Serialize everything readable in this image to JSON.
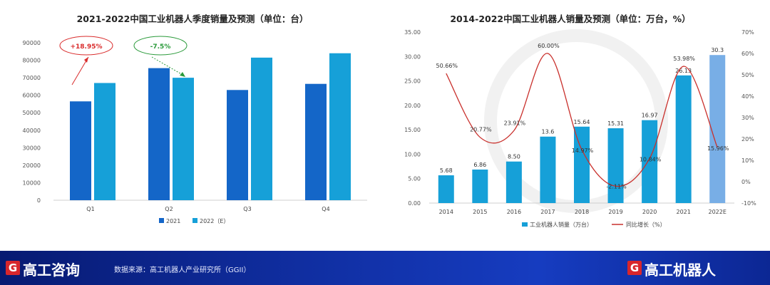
{
  "chart_data": [
    {
      "type": "bar",
      "title": "2021-2022中国工业机器人季度销量及预测（单位：台）",
      "categories": [
        "Q1",
        "Q2",
        "Q3",
        "Q4"
      ],
      "series": [
        {
          "name": "2021",
          "values": [
            56500,
            75500,
            63000,
            66500
          ],
          "color": "#1466c8"
        },
        {
          "name": "2022（E）",
          "values": [
            67000,
            70000,
            81500,
            84000
          ],
          "color": "#16a0d8"
        }
      ],
      "ylim": [
        0,
        90000
      ],
      "yticks": [
        0,
        10000,
        20000,
        30000,
        40000,
        50000,
        60000,
        70000,
        80000,
        90000
      ],
      "grid": false,
      "legend": "bottom",
      "annotations": [
        {
          "text": "+18.95%",
          "color": "#d92b2b"
        },
        {
          "text": "-7.5%",
          "color": "#2a9a3a"
        }
      ]
    },
    {
      "type": "bar",
      "title": "2014-2022中国工业机器人销量及预测（单位：万台，%）",
      "categories": [
        "2014",
        "2015",
        "2016",
        "2017",
        "2018",
        "2019",
        "2020",
        "2021",
        "2022E"
      ],
      "bar_series": {
        "name": "工业机器人销量（万台）",
        "values": [
          5.68,
          6.86,
          8.5,
          13.6,
          15.64,
          15.31,
          16.97,
          26.13,
          30.3
        ],
        "labels": [
          "5.68",
          "6.86",
          "8.50",
          "13.6",
          "15.64",
          "15.31",
          "16.97",
          "26.13",
          "30.3"
        ],
        "color": "#16a0d8",
        "forecast_color": "#78aee6"
      },
      "line_series": {
        "name": "同比增长（%）",
        "values": [
          50.66,
          20.77,
          23.91,
          60.0,
          14.97,
          -2.11,
          10.84,
          53.98,
          15.96
        ],
        "labels": [
          "50.66%",
          "20.77%",
          "23.91%",
          "60.00%",
          "14.97%",
          "-2.11%",
          "10.84%",
          "53.98%",
          "15.96%"
        ],
        "color": "#c9302c"
      },
      "y_left": {
        "range": [
          0,
          35
        ],
        "ticks": [
          "0.00",
          "5.00",
          "10.00",
          "15.00",
          "20.00",
          "25.00",
          "30.00",
          "35.00"
        ]
      },
      "y_right": {
        "range": [
          -10,
          70
        ],
        "ticks": [
          "-10%",
          "0%",
          "10%",
          "20%",
          "30%",
          "40%",
          "50%",
          "60%",
          "70%"
        ]
      },
      "grid": false,
      "legend": "bottom"
    }
  ],
  "footer": {
    "left_logo_letter": "G",
    "left_logo_text": "高工咨询",
    "source_text": "数据来源：高工机器人产业研究所（GGII）",
    "right_logo_letter": "G",
    "right_logo_text": "高工机器人",
    "background": "#0f2c9c",
    "logo_color": "#d8262c"
  }
}
